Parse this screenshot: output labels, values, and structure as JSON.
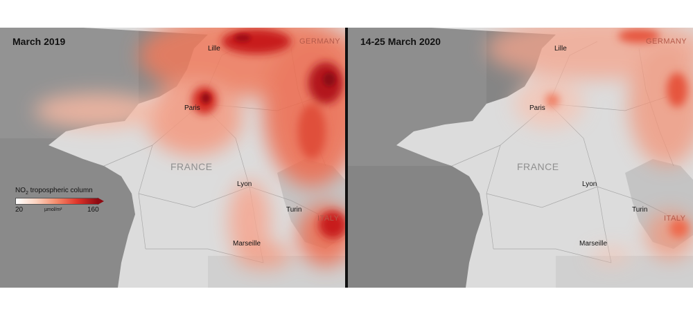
{
  "figure": {
    "panels": [
      {
        "title": "March 2019",
        "cities": {
          "lille": "Lille",
          "paris": "Paris",
          "lyon": "Lyon",
          "turin": "Turin",
          "marseille": "Marseille"
        },
        "countries": {
          "germany": "GERMANY",
          "france": "FRANCE",
          "italy": "ITALY"
        },
        "pollution_level": "high"
      },
      {
        "title": "14-25 March 2020",
        "cities": {
          "lille": "Lille",
          "paris": "Paris",
          "lyon": "Lyon",
          "turin": "Turin",
          "marseille": "Marseille"
        },
        "countries": {
          "germany": "GERMANY",
          "france": "FRANCE",
          "italy": "ITALY"
        },
        "pollution_level": "low"
      }
    ],
    "legend": {
      "title_prefix": "NO",
      "title_sub": "2",
      "title_suffix": " tropospheric column",
      "min": "20",
      "max": "160",
      "unit": "µmol/m²",
      "colors": [
        "#ffffff",
        "#fbd2bf",
        "#f48a6a",
        "#e0342a",
        "#8e0a12"
      ]
    }
  },
  "colors": {
    "sea": "#8a8a8a",
    "land": "#dcdcdc",
    "divider": "#111111"
  }
}
